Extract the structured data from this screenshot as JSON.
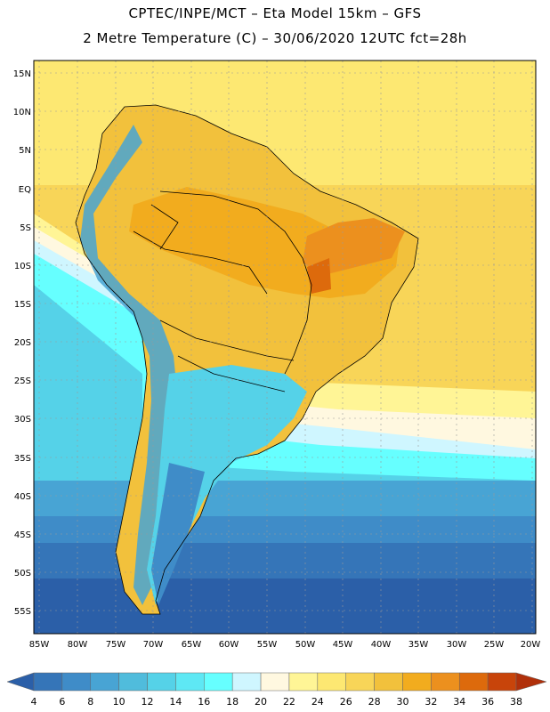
{
  "title": {
    "line1": "CPTEC/INPE/MCT –  Eta Model 15km – GFS",
    "line2": "2 Metre Temperature (C) – 30/06/2020 12UTC fct=28h"
  },
  "axes": {
    "lat_labels": [
      "15N",
      "10N",
      "5N",
      "EQ",
      "5S",
      "10S",
      "15S",
      "20S",
      "25S",
      "30S",
      "35S",
      "40S",
      "45S",
      "50S",
      "55S"
    ],
    "lon_labels": [
      "85W",
      "80W",
      "75W",
      "70W",
      "65W",
      "60W",
      "55W",
      "50W",
      "45W",
      "40W",
      "35W",
      "30W",
      "25W",
      "20W"
    ]
  },
  "colorbar": {
    "values": [
      "4",
      "6",
      "8",
      "10",
      "12",
      "14",
      "16",
      "18",
      "20",
      "22",
      "24",
      "26",
      "28",
      "30",
      "32",
      "34",
      "36",
      "38"
    ],
    "colors": [
      "#2b5fa8",
      "#3575b8",
      "#3f8cc8",
      "#48a4d4",
      "#50bcdc",
      "#55d2e8",
      "#5ee8f4",
      "#66ffff",
      "#cff6ff",
      "#fff8e0",
      "#fff596",
      "#fde872",
      "#f8d558",
      "#f2c13c",
      "#f2ac1e",
      "#ec901e",
      "#dd6a0c",
      "#c8440a",
      "#b0300a"
    ]
  }
}
